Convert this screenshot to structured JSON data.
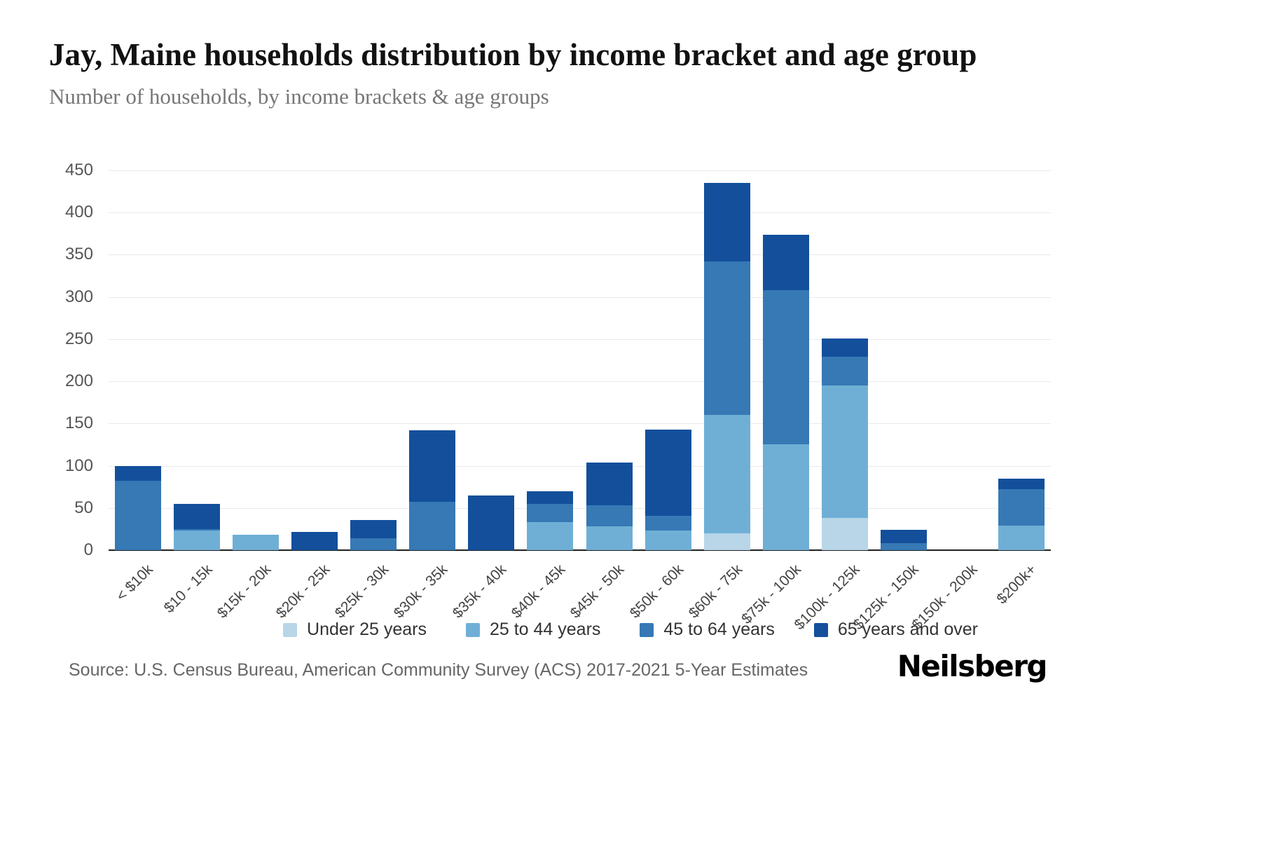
{
  "header": {
    "title": "Jay, Maine households distribution by income bracket and age group",
    "subtitle": "Number of households, by income brackets & age groups"
  },
  "chart_data": {
    "type": "bar",
    "stacked": true,
    "title": "Jay, Maine households distribution by income bracket and age group",
    "subtitle": "Number of households, by income brackets & age groups",
    "xlabel": "",
    "ylabel": "",
    "ylim": [
      0,
      450
    ],
    "yticks": [
      0,
      50,
      100,
      150,
      200,
      250,
      300,
      350,
      400,
      450
    ],
    "grid": true,
    "legend_position": "bottom",
    "categories": [
      "< $10k",
      "$10 - 15k",
      "$15k - 20k",
      "$20k - 25k",
      "$25k - 30k",
      "$30k - 35k",
      "$35k - 40k",
      "$40k - 45k",
      "$45k - 50k",
      "$50k - 60k",
      "$60k - 75k",
      "$75k - 100k",
      "$100k - 125k",
      "$125k - 150k",
      "$150k - 200k",
      "$200k+"
    ],
    "series": [
      {
        "name": "Under 25 years",
        "color": "#b8d6e8",
        "values": [
          0,
          0,
          0,
          0,
          0,
          0,
          0,
          0,
          0,
          0,
          20,
          0,
          38,
          0,
          0,
          0
        ]
      },
      {
        "name": "25 to 44 years",
        "color": "#6fafd6",
        "values": [
          0,
          23,
          18,
          0,
          0,
          0,
          0,
          33,
          28,
          23,
          140,
          125,
          157,
          0,
          0,
          29
        ]
      },
      {
        "name": "45 to 64 years",
        "color": "#3679b5",
        "values": [
          82,
          2,
          0,
          0,
          14,
          57,
          0,
          22,
          25,
          18,
          182,
          183,
          34,
          8,
          0,
          43
        ]
      },
      {
        "name": "65 years and over",
        "color": "#134f9b",
        "values": [
          18,
          30,
          0,
          22,
          22,
          85,
          65,
          15,
          51,
          102,
          93,
          66,
          22,
          16,
          0,
          13
        ]
      }
    ]
  },
  "footer": {
    "source": "Source: U.S. Census Bureau, American Community Survey (ACS) 2017-2021 5-Year Estimates",
    "brand": "Neilsberg"
  }
}
